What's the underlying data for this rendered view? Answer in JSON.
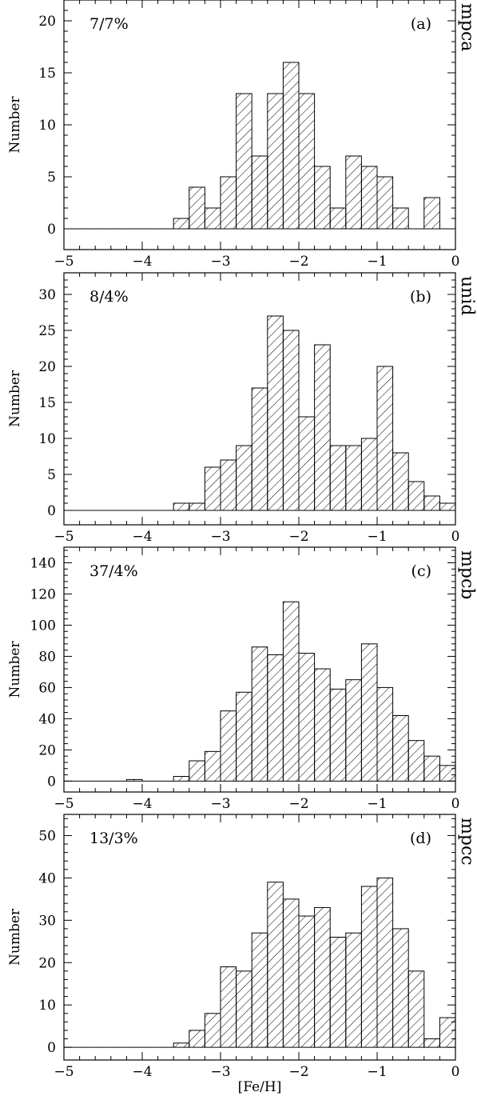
{
  "chart_data": [
    {
      "type": "bar",
      "panel": "(a)",
      "annotation": "7/7%",
      "side_label": "mpca",
      "ylabel": "Number",
      "xlabel": "",
      "xlim": [
        -5,
        0
      ],
      "ylim": [
        -2,
        22
      ],
      "yticks": [
        0,
        5,
        10,
        15,
        20
      ],
      "xticks": [
        -5,
        -4,
        -3,
        -2,
        -1,
        0
      ],
      "bin_width": 0.2,
      "bin_starts": [
        -5.0,
        -4.8,
        -4.6,
        -4.4,
        -4.2,
        -4.0,
        -3.8,
        -3.6,
        -3.4,
        -3.2,
        -3.0,
        -2.8,
        -2.6,
        -2.4,
        -2.2,
        -2.0,
        -1.8,
        -1.6,
        -1.4,
        -1.2,
        -1.0,
        -0.8,
        -0.6,
        -0.4,
        -0.2
      ],
      "values": [
        0,
        0,
        0,
        0,
        0,
        0,
        0,
        1,
        4,
        2,
        5,
        13,
        7,
        13,
        16,
        13,
        6,
        2,
        7,
        6,
        5,
        2,
        0,
        3,
        0
      ]
    },
    {
      "type": "bar",
      "panel": "(b)",
      "annotation": "8/4%",
      "side_label": "unid",
      "ylabel": "Number",
      "xlabel": "",
      "xlim": [
        -5,
        0
      ],
      "ylim": [
        -2,
        33
      ],
      "yticks": [
        0,
        5,
        10,
        15,
        20,
        25,
        30
      ],
      "xticks": [
        -5,
        -4,
        -3,
        -2,
        -1,
        0
      ],
      "bin_width": 0.2,
      "bin_starts": [
        -5.0,
        -4.8,
        -4.6,
        -4.4,
        -4.2,
        -4.0,
        -3.8,
        -3.6,
        -3.4,
        -3.2,
        -3.0,
        -2.8,
        -2.6,
        -2.4,
        -2.2,
        -2.0,
        -1.8,
        -1.6,
        -1.4,
        -1.2,
        -1.0,
        -0.8,
        -0.6,
        -0.4,
        -0.2
      ],
      "values": [
        0,
        0,
        0,
        0,
        0,
        0,
        0,
        1,
        1,
        6,
        7,
        9,
        17,
        27,
        25,
        13,
        23,
        9,
        9,
        10,
        20,
        8,
        4,
        2,
        1
      ]
    },
    {
      "type": "bar",
      "panel": "(c)",
      "annotation": "37/4%",
      "side_label": "mpcb",
      "ylabel": "Number",
      "xlabel": "",
      "xlim": [
        -5,
        0
      ],
      "ylim": [
        -7,
        150
      ],
      "yticks": [
        0,
        20,
        40,
        60,
        80,
        100,
        120,
        140
      ],
      "xticks": [
        -5,
        -4,
        -3,
        -2,
        -1,
        0
      ],
      "bin_width": 0.2,
      "bin_starts": [
        -5.0,
        -4.8,
        -4.6,
        -4.4,
        -4.2,
        -4.0,
        -3.8,
        -3.6,
        -3.4,
        -3.2,
        -3.0,
        -2.8,
        -2.6,
        -2.4,
        -2.2,
        -2.0,
        -1.8,
        -1.6,
        -1.4,
        -1.2,
        -1.0,
        -0.8,
        -0.6,
        -0.4,
        -0.2
      ],
      "values": [
        0,
        0,
        0,
        0,
        1,
        0,
        0,
        3,
        13,
        19,
        45,
        57,
        86,
        81,
        115,
        82,
        72,
        59,
        65,
        88,
        60,
        42,
        26,
        16,
        10
      ]
    },
    {
      "type": "bar",
      "panel": "(d)",
      "annotation": "13/3%",
      "side_label": "mpcc",
      "ylabel": "Number",
      "xlabel": "[Fe/H]",
      "xlim": [
        -5,
        0
      ],
      "ylim": [
        -3,
        55
      ],
      "yticks": [
        0,
        10,
        20,
        30,
        40,
        50
      ],
      "xticks": [
        -5,
        -4,
        -3,
        -2,
        -1,
        0
      ],
      "bin_width": 0.2,
      "bin_starts": [
        -5.0,
        -4.8,
        -4.6,
        -4.4,
        -4.2,
        -4.0,
        -3.8,
        -3.6,
        -3.4,
        -3.2,
        -3.0,
        -2.8,
        -2.6,
        -2.4,
        -2.2,
        -2.0,
        -1.8,
        -1.6,
        -1.4,
        -1.2,
        -1.0,
        -0.8,
        -0.6,
        -0.4,
        -0.2
      ],
      "values": [
        0,
        0,
        0,
        0,
        0,
        0,
        0,
        1,
        4,
        8,
        19,
        18,
        27,
        39,
        35,
        31,
        33,
        26,
        27,
        38,
        40,
        28,
        18,
        2,
        7
      ]
    }
  ]
}
